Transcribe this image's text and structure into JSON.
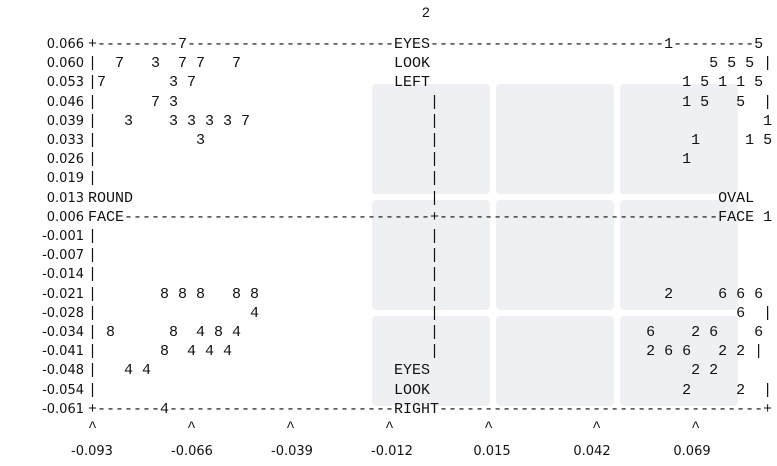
{
  "top_label": "2",
  "rows": [
    {
      "label": "0.066",
      "text": "+---------7-----------------------EYES--------------------------1---------5"
    },
    {
      "label": "0.060",
      "text": "|  7   3  7 7   7                 LOOK                               5 5 5 |"
    },
    {
      "label": "0.053",
      "text": "|7       3 7                      LEFT                            1 5 1 1 5"
    },
    {
      "label": "0.046",
      "text": "|      7 3                            |                           1 5   5  |"
    },
    {
      "label": "0.039",
      "text": "|   3    3 3 3 3 7                    |                                    1"
    },
    {
      "label": "0.033",
      "text": "|           3                         |                            1     1 5"
    },
    {
      "label": "0.026",
      "text": "|                                     |                           1"
    },
    {
      "label": "0.019",
      "text": "|                                     |"
    },
    {
      "label": "0.013",
      "text": "ROUND                                 |                               OVAL"
    },
    {
      "label": "0.006",
      "text": "FACE----------------------------------+-------------------------------FACE 1"
    },
    {
      "label": "-0.001",
      "text": "|                                     |"
    },
    {
      "label": "-0.007",
      "text": "|                                     |"
    },
    {
      "label": "-0.014",
      "text": "|                                     |"
    },
    {
      "label": "-0.021",
      "text": "|       8 8 8   8 8                   |                         2     6 6 6"
    },
    {
      "label": "-0.028",
      "text": "|                 4                   |                                 6  |"
    },
    {
      "label": "-0.034",
      "text": "| 8      8  4 8 4                     |                       6    2 6    6"
    },
    {
      "label": "-0.041",
      "text": "|       8  4 4 4                      |                       2 6 6   2 2 |"
    },
    {
      "label": "-0.048",
      "text": "|   4 4                           EYES                             2 2"
    },
    {
      "label": "-0.054",
      "text": "|                                 LOOK                            2     2  |"
    },
    {
      "label": "-0.061",
      "text": "+-------4-------------------------RIGHT------------------------------------+"
    }
  ],
  "caret_row": "^          ^          ^          ^          ^           ^          ^",
  "x_labels": [
    "-0.093",
    "-0.066",
    "-0.039",
    "-0.012",
    "0.015",
    "0.042",
    "0.069"
  ]
}
